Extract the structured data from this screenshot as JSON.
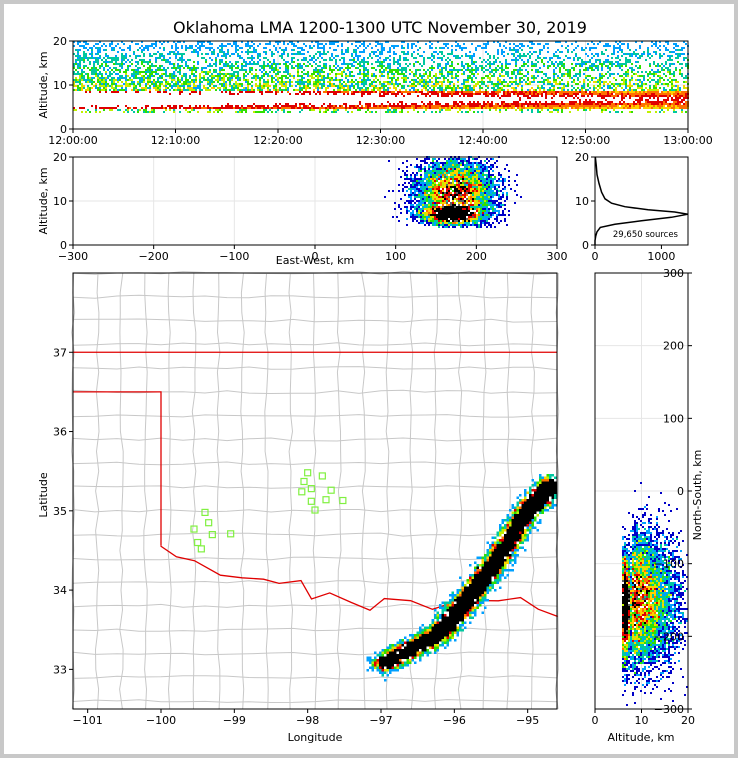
{
  "figure": {
    "title": "Oklahoma LMA 1200-1300 UTC November 30, 2019",
    "background_color": "#ffffff",
    "border_color": "#c8c8c8",
    "colormap": [
      "#0000c8",
      "#00a0ff",
      "#00c8a0",
      "#30e000",
      "#c0f000",
      "#ffd000",
      "#ff7000",
      "#e00000",
      "#ffffff",
      "#606060",
      "#000000"
    ]
  },
  "chart_data": [
    {
      "id": "time-altitude",
      "type": "heatmap",
      "title": "Oklahoma LMA 1200-1300 UTC November 30, 2019",
      "ylabel": "Altitude, km",
      "xlabel": "",
      "xlim": [
        "12:00:00",
        "13:00:00"
      ],
      "ylim": [
        0,
        20
      ],
      "x_ticks": [
        "12:00:00",
        "12:10:00",
        "12:20:00",
        "12:30:00",
        "12:40:00",
        "12:50:00",
        "13:00:00"
      ],
      "y_ticks": [
        "0",
        "10",
        "20"
      ],
      "grid": true,
      "density_profile": {
        "peak_altitude_km": 7,
        "layer_min_km": 4,
        "layer_max_km": 20,
        "core_min_km": 5,
        "core_max_km": 9
      }
    },
    {
      "id": "ew-altitude",
      "type": "heatmap",
      "xlabel": "East-West, km",
      "ylabel": "Altitude, km",
      "xlim": [
        -300,
        300
      ],
      "ylim": [
        0,
        20
      ],
      "x_ticks": [
        "−300",
        "−200",
        "−100",
        "0",
        "100",
        "200",
        "300"
      ],
      "y_ticks": [
        "0",
        "10",
        "20"
      ],
      "grid": true,
      "clusters": [
        {
          "x_center": 175,
          "x_spread": 40,
          "z_center": 12,
          "z_spread": 5
        },
        {
          "x_center": 170,
          "x_spread": 30,
          "z_center": 7,
          "z_spread": 1.5
        }
      ]
    },
    {
      "id": "altitude-histogram",
      "type": "line",
      "xlabel": "",
      "ylabel": "",
      "xlim": [
        0,
        1400
      ],
      "ylim": [
        0,
        20
      ],
      "x_ticks": [
        "0",
        "1000"
      ],
      "y_ticks": [
        "0",
        "10",
        "20"
      ],
      "annotation": "29,650 sources",
      "points": [
        [
          0,
          0
        ],
        [
          0,
          1
        ],
        [
          10,
          2
        ],
        [
          30,
          3
        ],
        [
          80,
          4
        ],
        [
          300,
          4.7
        ],
        [
          700,
          5.5
        ],
        [
          1150,
          6.3
        ],
        [
          1400,
          7
        ],
        [
          1200,
          7.5
        ],
        [
          800,
          8
        ],
        [
          450,
          8.7
        ],
        [
          250,
          9.5
        ],
        [
          150,
          10.5
        ],
        [
          100,
          12
        ],
        [
          60,
          14
        ],
        [
          30,
          16
        ],
        [
          20,
          18
        ],
        [
          5,
          20
        ]
      ]
    },
    {
      "id": "plan-view-map",
      "type": "heatmap",
      "xlabel": "Longitude",
      "ylabel": "Latitude",
      "xlim": [
        -101.2,
        -94.6
      ],
      "ylim": [
        32.5,
        38
      ],
      "x_ticks": [
        "−101",
        "−100",
        "−99",
        "−98",
        "−97",
        "−96",
        "−95"
      ],
      "y_ticks": [
        "33",
        "34",
        "35",
        "36",
        "37"
      ],
      "state_boundary_color": "#e00000",
      "county_line_color": "#c8c8c8",
      "station_color": "#80f040",
      "station_marker": "hollow-square",
      "stations": [
        {
          "lon": -99.4,
          "lat": 34.98
        },
        {
          "lon": -99.35,
          "lat": 34.85
        },
        {
          "lon": -99.55,
          "lat": 34.77
        },
        {
          "lon": -99.3,
          "lat": 34.7
        },
        {
          "lon": -99.5,
          "lat": 34.6
        },
        {
          "lon": -99.45,
          "lat": 34.52
        },
        {
          "lon": -99.05,
          "lat": 34.71
        },
        {
          "lon": -98.0,
          "lat": 35.48
        },
        {
          "lon": -98.05,
          "lat": 35.37
        },
        {
          "lon": -97.95,
          "lat": 35.28
        },
        {
          "lon": -98.08,
          "lat": 35.24
        },
        {
          "lon": -97.8,
          "lat": 35.44
        },
        {
          "lon": -97.68,
          "lat": 35.26
        },
        {
          "lon": -97.75,
          "lat": 35.14
        },
        {
          "lon": -97.95,
          "lat": 35.12
        },
        {
          "lon": -97.9,
          "lat": 35.01
        },
        {
          "lon": -97.52,
          "lat": 35.13
        }
      ],
      "storm_line": {
        "points": [
          [
            -97.0,
            33.05
          ],
          [
            -96.2,
            33.45
          ],
          [
            -95.8,
            33.9
          ],
          [
            -95.4,
            34.4
          ],
          [
            -95.0,
            35.0
          ],
          [
            -94.65,
            35.35
          ]
        ],
        "width_deg": 0.22
      }
    },
    {
      "id": "altitude-ns",
      "type": "heatmap",
      "xlabel": "Altitude, km",
      "ylabel": "North-South, km",
      "xlim": [
        0,
        20
      ],
      "ylim": [
        -300,
        300
      ],
      "x_ticks": [
        "0",
        "10",
        "20"
      ],
      "y_ticks": [
        "−300",
        "−200",
        "−100",
        "0",
        "100",
        "200",
        "300"
      ],
      "grid": true,
      "clusters": [
        {
          "z_center": 9,
          "z_spread": 5,
          "y_center": -150,
          "y_spread": 55
        },
        {
          "z_center": 7,
          "z_spread": 1.5,
          "y_center": -160,
          "y_spread": 45
        }
      ]
    }
  ]
}
